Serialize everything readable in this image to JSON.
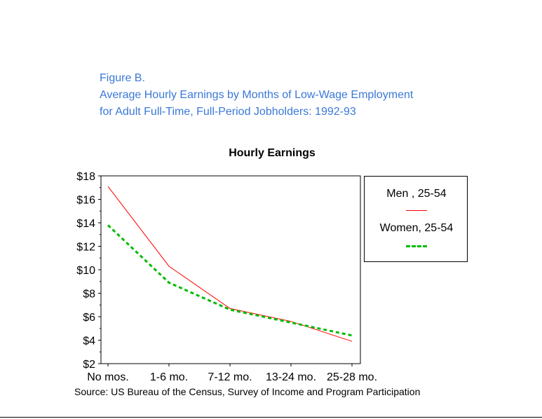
{
  "figure": {
    "label": "Figure B.",
    "title_line1": "Average Hourly Earnings by Months of Low-Wage Employment",
    "title_line2": "for Adult Full-Time, Full-Period Jobholders: 1992-93"
  },
  "source": "Source: US Bureau of the Census, Survey of Income and Program Participation",
  "chart_data": {
    "type": "line",
    "title": "Hourly Earnings",
    "xlabel": "",
    "ylabel": "",
    "categories": [
      "No mos.",
      "1-6 mo.",
      "7-12 mo.",
      "13-24 mo.",
      "25-28 mo."
    ],
    "ylim": [
      2,
      18
    ],
    "yticks": [
      2,
      4,
      6,
      8,
      10,
      12,
      14,
      16,
      18
    ],
    "ytick_labels": [
      "$2",
      "$4",
      "$6",
      "$8",
      "$10",
      "$12",
      "$14",
      "$16",
      "$18"
    ],
    "legend_position": "right",
    "series": [
      {
        "name": "Men , 25-54",
        "color": "#ff0000",
        "style": "solid",
        "values": [
          17.1,
          10.3,
          6.7,
          5.6,
          3.9
        ]
      },
      {
        "name": "Women, 25-54",
        "color": "#00bb00",
        "style": "dashed",
        "values": [
          13.8,
          8.9,
          6.6,
          5.5,
          4.4
        ]
      }
    ]
  }
}
